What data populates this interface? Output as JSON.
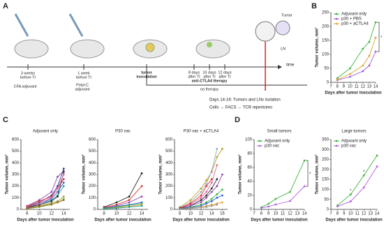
{
  "panel_labels": [
    "A",
    "B",
    "C",
    "D"
  ],
  "diagram": {
    "cfa_timing": [
      "3 weeks",
      "before TI"
    ],
    "cfa_label": "CFA adjuvant",
    "polyic_timing": [
      "1 week",
      "before TI"
    ],
    "polyic_label": [
      "PolyI:C",
      "adjuvant"
    ],
    "inoculation": [
      "tumor",
      "inoculation"
    ],
    "ctla4_days": [
      [
        "8 days",
        "after TI"
      ],
      [
        "10 days",
        "after TI"
      ],
      [
        "12 days",
        "after TI"
      ]
    ],
    "ctla4_label": "anti-CTLA4 therapy",
    "time_axis": "time",
    "no_therapy": "no therapy",
    "tumor": "Tumor",
    "ln": "LN",
    "isolation": "Days 14-16: Tumors and LNs isolation",
    "analysis": "Cells → FACS → TCR repertoires"
  },
  "chart_data": [
    {
      "type": "line",
      "xlabel": "Days after tumor inoculation",
      "ylabel": "Tumor volume, mm³",
      "x": [
        8,
        10,
        12,
        13,
        14
      ],
      "xlim": [
        7,
        14
      ],
      "xticks": [
        7,
        8,
        9,
        10,
        11,
        12,
        13,
        14
      ],
      "ylim": [
        0,
        250
      ],
      "yticks": [
        0,
        50,
        100,
        150,
        200,
        250
      ],
      "legend": "upper left",
      "series": [
        {
          "name": "Adjuvant only",
          "color": "#3cb43c",
          "values": [
            15,
            50,
            120,
            145,
            215
          ]
        },
        {
          "name": "p30 + PBS",
          "color": "#9b59d0",
          "values": [
            8,
            20,
            40,
            60,
            110
          ]
        },
        {
          "name": "p30 + aCTLA4",
          "color": "#e0a030",
          "values": [
            10,
            30,
            60,
            95,
            160
          ]
        }
      ],
      "annotations": [
        {
          "text": "*"
        }
      ]
    },
    {
      "type": "line",
      "title": "Adjuvant only",
      "xlabel": "Days after tumor inoculation",
      "ylabel": "Tumor volume, mm³",
      "x": [
        8,
        10,
        12,
        13,
        14
      ],
      "xlim": [
        7,
        15
      ],
      "xticks": [
        8,
        10,
        12,
        14
      ],
      "ylim": [
        0,
        600
      ],
      "yticks": [
        0,
        100,
        200,
        300,
        400,
        500,
        600
      ],
      "series": [
        {
          "color": "#8e44ad",
          "values": [
            30,
            80,
            150,
            280,
            330
          ]
        },
        {
          "color": "#2c3e91",
          "values": [
            20,
            60,
            120,
            200,
            350
          ]
        },
        {
          "color": "#e03030",
          "values": [
            25,
            70,
            110,
            180,
            260
          ]
        },
        {
          "color": "#3060e0",
          "values": [
            15,
            50,
            90,
            150,
            230
          ]
        },
        {
          "color": "#20a0a0",
          "values": [
            10,
            40,
            80,
            120,
            200
          ]
        },
        {
          "color": "#a0a030",
          "values": [
            10,
            30,
            55,
            70,
            110
          ]
        },
        {
          "color": "#333333",
          "values": [
            15,
            40,
            70,
            110,
            320
          ]
        },
        {
          "color": "#e060a0",
          "values": [
            20,
            50,
            100,
            180,
            300
          ]
        },
        {
          "color": "#80c040",
          "values": [
            5,
            20,
            40,
            60,
            90
          ]
        },
        {
          "color": "#a06030",
          "values": [
            8,
            25,
            45,
            60,
            80
          ]
        }
      ]
    },
    {
      "type": "line",
      "title": "P30 vac",
      "xlabel": "Days after tumor inoculation",
      "ylabel": "Tumor volume, mm³",
      "x": [
        8,
        10,
        12,
        14
      ],
      "xlim": [
        7,
        15
      ],
      "xticks": [
        8,
        10,
        12,
        14
      ],
      "ylim": [
        0,
        600
      ],
      "yticks": [
        0,
        100,
        200,
        300,
        400,
        500,
        600
      ],
      "series": [
        {
          "color": "#222222",
          "values": [
            20,
            60,
            110,
            310
          ]
        },
        {
          "color": "#e03030",
          "values": [
            15,
            40,
            80,
            200
          ]
        },
        {
          "color": "#8e44ad",
          "values": [
            10,
            30,
            60,
            110
          ]
        },
        {
          "color": "#3060e0",
          "values": [
            10,
            25,
            40,
            60
          ]
        },
        {
          "color": "#3cb43c",
          "values": [
            8,
            20,
            35,
            50
          ]
        },
        {
          "color": "#e0a030",
          "values": [
            5,
            15,
            25,
            40
          ]
        },
        {
          "color": "#20a0a0",
          "values": [
            5,
            10,
            20,
            30
          ]
        }
      ]
    },
    {
      "type": "line",
      "title": "P30 vac + aCTLA4",
      "xlabel": "Days after tumor inoculation",
      "ylabel": "Tumor volume, mm³",
      "x": [
        8,
        10,
        12,
        13,
        14,
        15,
        16
      ],
      "xlim": [
        7,
        17
      ],
      "xticks": [
        8,
        10,
        12,
        14,
        16
      ],
      "ylim": [
        0,
        600
      ],
      "yticks": [
        0,
        100,
        200,
        300,
        400,
        500,
        600
      ],
      "series": [
        {
          "color": "#b8a020",
          "values": [
            20,
            80,
            180,
            250,
            320,
            450,
            520
          ]
        },
        {
          "color": "#99aabb",
          "values": [
            15,
            60,
            150,
            220,
            330,
            520,
            null
          ]
        },
        {
          "color": "#e060a0",
          "values": [
            10,
            40,
            100,
            150,
            230,
            380,
            null
          ]
        },
        {
          "color": "#e03030",
          "values": [
            10,
            50,
            120,
            200,
            260,
            null,
            null
          ]
        },
        {
          "color": "#222222",
          "values": [
            8,
            30,
            80,
            120,
            180,
            260,
            null
          ]
        },
        {
          "color": "#8e44ad",
          "values": [
            5,
            30,
            60,
            100,
            150,
            200,
            300
          ]
        },
        {
          "color": "#3cb43c",
          "values": [
            5,
            20,
            40,
            60,
            90,
            130,
            170
          ]
        },
        {
          "color": "#3060e0",
          "values": [
            5,
            15,
            30,
            50,
            70,
            100,
            120
          ]
        },
        {
          "color": "#e0a030",
          "values": [
            3,
            10,
            20,
            30,
            40,
            50,
            60
          ]
        },
        {
          "color": "#999999",
          "values": [
            3,
            8,
            15,
            20,
            30,
            40,
            null
          ]
        }
      ]
    },
    {
      "type": "line",
      "title": "Small tumors",
      "xlabel": "Days after tumor inoculation",
      "ylabel": "Tumor volume, mm³",
      "x": [
        8,
        9,
        10,
        12,
        14
      ],
      "xlim": [
        7,
        14
      ],
      "xticks": [
        7,
        8,
        9,
        10,
        11,
        12,
        13,
        14
      ],
      "ylim": [
        0,
        100
      ],
      "yticks": [
        0,
        20,
        40,
        60,
        80,
        100
      ],
      "legend": "upper left",
      "series": [
        {
          "name": "Adjuvant only",
          "color": "#3cb43c",
          "values": [
            3,
            8,
            15,
            25,
            70
          ]
        },
        {
          "name": "p30 vac",
          "color": "#b060e0",
          "values": [
            2,
            4,
            7,
            12,
            33
          ]
        }
      ],
      "annotations": [
        {
          "text": "*"
        }
      ]
    },
    {
      "type": "line",
      "title": "Large tumors",
      "xlabel": "Days after tumor inoculation",
      "ylabel": "Tumor volume, mm³",
      "x": [
        8,
        10,
        12,
        14
      ],
      "xlim": [
        7,
        14
      ],
      "xticks": [
        7,
        8,
        9,
        10,
        11,
        12,
        13,
        14
      ],
      "ylim": [
        0,
        350
      ],
      "yticks": [
        0,
        50,
        100,
        150,
        200,
        250,
        300,
        350
      ],
      "legend": "upper left",
      "series": [
        {
          "name": "Adjuvant only",
          "color": "#3cb43c",
          "values": [
            20,
            75,
            170,
            270
          ]
        },
        {
          "name": "p30 vac",
          "color": "#b060e0",
          "values": [
            15,
            40,
            110,
            215
          ]
        }
      ],
      "annotations": [
        {
          "text": "*",
          "x": 10
        },
        {
          "text": "*",
          "x": 12
        }
      ]
    }
  ]
}
